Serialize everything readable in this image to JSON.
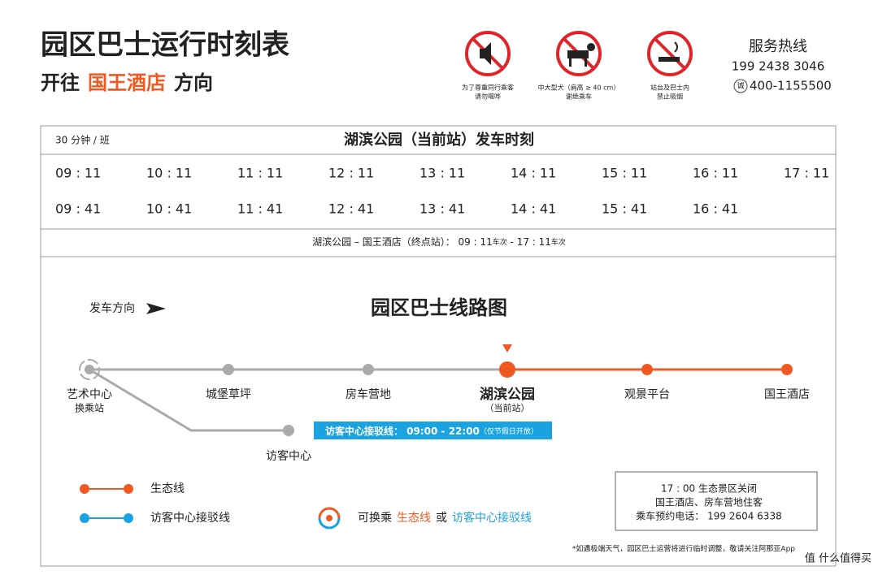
{
  "header": {
    "title": "园区巴士运行时刻表",
    "direction_prefix": "开往",
    "direction_dest": "国王酒店",
    "direction_suffix": "方向"
  },
  "notices": [
    {
      "lines": [
        "为了尊重同行乘客",
        "请勿喧哗"
      ]
    },
    {
      "lines": [
        "中大型犬（肩高 ≥ 40 cm）",
        "谢绝乘车"
      ]
    },
    {
      "lines": [
        "站台及巴士内",
        "禁止吸烟"
      ]
    }
  ],
  "hotline": {
    "title": "服务热线",
    "phone": "199 2438 3046",
    "alt_icon": "诚",
    "alt_phone": "400-1155500"
  },
  "timetable": {
    "frequency": "30 分钟 / 班",
    "heading": "湖滨公园（当前站）发车时刻",
    "rows": [
      [
        "09 : 11",
        "10 : 11",
        "11 : 11",
        "12 : 11",
        "13 : 11",
        "14 : 11",
        "15 : 11",
        "16 : 11",
        "17 : 11"
      ],
      [
        "09 : 41",
        "10 : 41",
        "11 : 41",
        "12 : 41",
        "13 : 41",
        "14 : 41",
        "15 : 41",
        "16 : 41"
      ]
    ],
    "route_note": {
      "text": "湖滨公园 – 国王酒店（终点站）： 09 : 11",
      "first_unit": "车次",
      "last": " - 17 : 11",
      "last_unit": "车次"
    }
  },
  "map": {
    "direction_label": "发车方向",
    "title": "园区巴士线路图",
    "stations": [
      {
        "label": "艺术中心",
        "sub": "换乘站"
      },
      {
        "label": "城堡草坪"
      },
      {
        "label": "房车营地"
      },
      {
        "label": "湖滨公园",
        "sub": "（当前站）"
      },
      {
        "label": "观景平台"
      },
      {
        "label": "国王酒店"
      }
    ],
    "visitor_center": "访客中心",
    "shuttle_label": "访客中心接驳线：  09:00 - 22:00",
    "shuttle_note": "（仅节假日开放）"
  },
  "legend": {
    "eco": "生态线",
    "shuttle": "访客中心接驳线",
    "transfer_prefix": "可换乘",
    "transfer_eco": "生态线",
    "transfer_or": "或",
    "transfer_shuttle": "访客中心接驳线"
  },
  "info_box": {
    "lines": [
      "17 : 00 生态景区关闭",
      "国王酒店、房车营地住客",
      "乘车预约电话： 199 2604 6338"
    ]
  },
  "footnote": "*如遇极端天气，园区巴士运营将进行临时调整，敬请关注阿那亚App",
  "watermark": "值 什么值得买"
}
